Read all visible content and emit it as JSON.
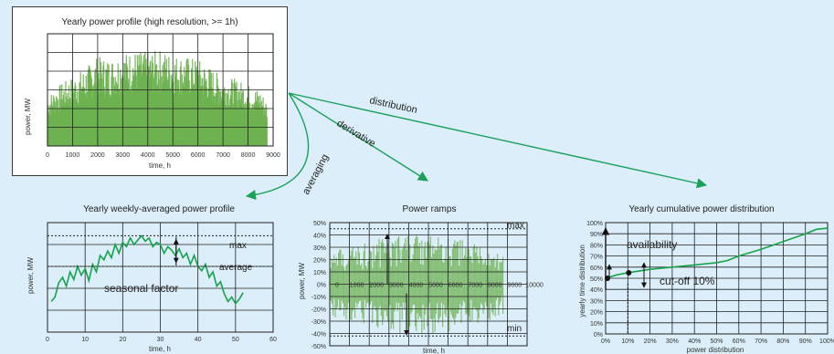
{
  "colors": {
    "background": "#dbeef9",
    "signal_green": "#6ab04c",
    "line_green": "#16a34a",
    "arrow_green": "#1aa05a",
    "grid": "#222222"
  },
  "main_chart": {
    "title": "Yearly power profile (high resolution, >= 1h)",
    "ylabel": "power, MW",
    "xlabel": "time, h",
    "xticks": [
      "0",
      "1000",
      "2000",
      "3000",
      "4000",
      "5000",
      "6000",
      "7000",
      "8000",
      "9000"
    ]
  },
  "arrows": {
    "averaging": "averaging",
    "derivative": "derivative",
    "distribution": "distribution"
  },
  "weekly_chart": {
    "title": "Yearly weekly-averaged power profile",
    "ylabel": "power, MW",
    "xlabel": "time, h",
    "xticks": [
      "0",
      "10",
      "20",
      "30",
      "40",
      "50",
      "60"
    ],
    "labels": {
      "max": "max",
      "average": "average",
      "seasonal": "seasonal factor"
    }
  },
  "ramps_chart": {
    "title": "Power ramps",
    "ylabel": "power, MW",
    "xlabel": "time, h",
    "yticks": [
      "50%",
      "40%",
      "30%",
      "20%",
      "10%",
      "0%",
      "-10%",
      "-20%",
      "-30%",
      "-40%",
      "-50%"
    ],
    "xticks": [
      "0",
      "1000",
      "2000",
      "3000",
      "4000",
      "5000",
      "6000",
      "7000",
      "8000",
      "9000",
      "10000"
    ],
    "labels": {
      "max": "max",
      "min": "min"
    }
  },
  "cumulative_chart": {
    "title": "Yearly cumulative power distribution",
    "ylabel": "yearly time distribution",
    "xlabel": "power distribution",
    "yticks": [
      "100%",
      "90%",
      "80%",
      "70%",
      "60%",
      "50%",
      "40%",
      "30%",
      "20%",
      "10%",
      "0%"
    ],
    "xticks": [
      "0%",
      "10%",
      "20%",
      "30%",
      "40%",
      "50%",
      "60%",
      "70%",
      "80%",
      "90%",
      "100%"
    ],
    "labels": {
      "availability": "availability",
      "cutoff": "cut-off 10%"
    },
    "curve": [
      [
        0,
        50
      ],
      [
        5,
        53
      ],
      [
        10,
        55
      ],
      [
        20,
        58
      ],
      [
        30,
        60
      ],
      [
        40,
        62
      ],
      [
        50,
        64
      ],
      [
        55,
        66
      ],
      [
        60,
        70
      ],
      [
        70,
        76
      ],
      [
        80,
        83
      ],
      [
        90,
        90
      ],
      [
        95,
        94
      ],
      [
        100,
        95
      ]
    ]
  },
  "chart_data": [
    {
      "type": "area",
      "title": "Yearly power profile (high resolution, >= 1h)",
      "xlabel": "time, h",
      "ylabel": "power, MW",
      "xlim": [
        0,
        9000
      ],
      "x": [
        0,
        500,
        1000,
        1500,
        2000,
        2500,
        3000,
        3500,
        4000,
        4500,
        5000,
        5500,
        6000,
        6500,
        7000,
        7500,
        8000,
        8500,
        8760
      ],
      "values": [
        0.45,
        0.55,
        0.62,
        0.7,
        0.8,
        0.78,
        0.83,
        0.85,
        0.84,
        0.86,
        0.82,
        0.8,
        0.78,
        0.7,
        0.62,
        0.6,
        0.55,
        0.5,
        0.4
      ]
    },
    {
      "type": "line",
      "title": "Yearly weekly-averaged power profile",
      "xlabel": "time, h",
      "ylabel": "power, MW",
      "xlim": [
        0,
        60
      ],
      "x": [
        1,
        2,
        3,
        4,
        5,
        6,
        7,
        8,
        9,
        10,
        11,
        12,
        13,
        14,
        15,
        16,
        17,
        18,
        19,
        20,
        21,
        22,
        23,
        24,
        25,
        26,
        27,
        28,
        29,
        30,
        31,
        32,
        33,
        34,
        35,
        36,
        37,
        38,
        39,
        40,
        41,
        42,
        43,
        44,
        45,
        46,
        47,
        48,
        49,
        50,
        51,
        52
      ],
      "values": [
        0.28,
        0.32,
        0.45,
        0.5,
        0.42,
        0.55,
        0.48,
        0.6,
        0.52,
        0.58,
        0.47,
        0.62,
        0.55,
        0.7,
        0.66,
        0.74,
        0.68,
        0.8,
        0.72,
        0.82,
        0.78,
        0.86,
        0.8,
        0.84,
        0.88,
        0.83,
        0.86,
        0.78,
        0.82,
        0.8,
        0.72,
        0.78,
        0.75,
        0.7,
        0.76,
        0.68,
        0.72,
        0.62,
        0.7,
        0.6,
        0.56,
        0.62,
        0.5,
        0.55,
        0.42,
        0.46,
        0.35,
        0.28,
        0.32,
        0.26,
        0.3,
        0.36
      ]
    },
    {
      "type": "area",
      "title": "Power ramps",
      "xlabel": "time, h",
      "ylabel": "power, MW",
      "xlim": [
        0,
        10000
      ],
      "ylim": [
        -50,
        50
      ]
    },
    {
      "type": "line",
      "title": "Yearly cumulative power distribution",
      "xlabel": "power distribution",
      "ylabel": "yearly time distribution",
      "xlim": [
        0,
        100
      ],
      "ylim": [
        0,
        100
      ],
      "x": [
        0,
        5,
        10,
        20,
        30,
        40,
        50,
        55,
        60,
        70,
        80,
        90,
        95,
        100
      ],
      "values": [
        50,
        53,
        55,
        58,
        60,
        62,
        64,
        66,
        70,
        76,
        83,
        90,
        94,
        95
      ]
    }
  ]
}
